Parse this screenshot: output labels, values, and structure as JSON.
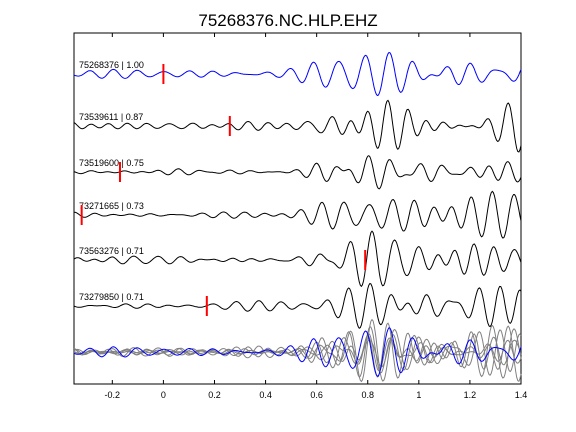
{
  "chart_data": {
    "type": "line",
    "title": "75268376.NC.HLP.EHZ",
    "xlabel": "",
    "ylabel": "",
    "xlim": [
      -0.35,
      1.4
    ],
    "xticks": [
      -0.2,
      0,
      0.2,
      0.4,
      0.6,
      0.8,
      1,
      1.2,
      1.4
    ],
    "xtick_labels": [
      "-0.2",
      "0",
      "0.2",
      "0.4",
      "0.6",
      "0.8",
      "1",
      "1.2",
      "1.4"
    ],
    "grid": false,
    "legend": "none",
    "colors": {
      "reference": "#0000ff",
      "trace": "#000000",
      "stack": "#808080",
      "pick": "#ff0000"
    },
    "series": [
      {
        "name": "75268376 | 1.00",
        "pick": 0.0,
        "reference": true
      },
      {
        "name": "73539611 | 0.87",
        "pick": 0.26,
        "reference": false
      },
      {
        "name": "73519600 | 0.75",
        "pick": -0.17,
        "reference": false
      },
      {
        "name": "73271665 | 0.73",
        "pick": -0.32,
        "reference": false
      },
      {
        "name": "73563276 | 0.71",
        "pick": 0.79,
        "reference": false
      },
      {
        "name": "73279850 | 0.71",
        "pick": 0.17,
        "reference": false
      }
    ]
  }
}
